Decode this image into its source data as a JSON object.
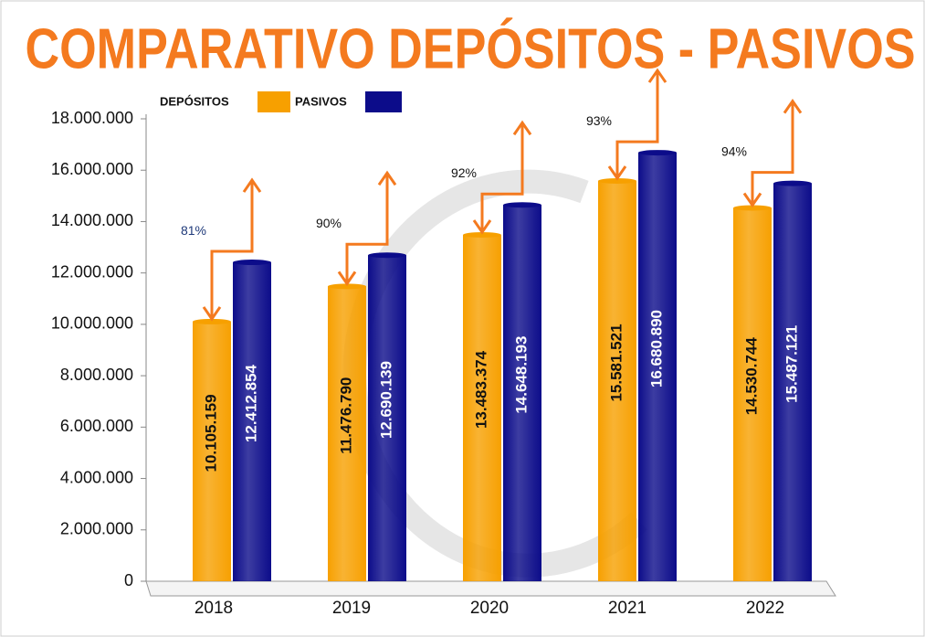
{
  "chart_data": {
    "type": "bar",
    "title": "COMPARATIVO DEPÓSITOS - PASIVOS",
    "categories": [
      "2018",
      "2019",
      "2020",
      "2021",
      "2022"
    ],
    "series": [
      {
        "name": "DEPÓSITOS",
        "color": "#f7a000",
        "values": [
          10105159,
          11476790,
          13483374,
          15581521,
          14530744
        ],
        "value_labels": [
          "10.105.159",
          "11.476.790",
          "13.483.374",
          "15.581.521",
          "14.530.744"
        ]
      },
      {
        "name": "PASIVOS",
        "color": "#0c0c8a",
        "values": [
          12412854,
          12690139,
          14648193,
          16680890,
          15487121
        ],
        "value_labels": [
          "12.412.854",
          "12.690.139",
          "14.648.193",
          "16.680.890",
          "15.487.121"
        ]
      }
    ],
    "ratios": {
      "values": [
        81,
        90,
        92,
        93,
        94
      ],
      "value_labels": [
        "81%",
        "90%",
        "92%",
        "93%",
        "94%"
      ]
    },
    "ylim": [
      0,
      18000000
    ],
    "yticks": [
      0,
      {
        "value": 2000000,
        "label": "2.000.000"
      },
      {
        "value": 4000000,
        "label": "4.000.000"
      },
      {
        "value": 6000000,
        "label": "6.000.000"
      },
      {
        "value": 8000000,
        "label": "8.000.000"
      },
      {
        "value": 10000000,
        "label": "10.000.000"
      },
      {
        "value": 12000000,
        "label": "12.000.000"
      },
      {
        "value": 14000000,
        "label": "14.000.000"
      },
      {
        "value": 16000000,
        "label": "16.000.000"
      },
      {
        "value": 18000000,
        "label": "18.000.000"
      }
    ],
    "legend": "top"
  }
}
